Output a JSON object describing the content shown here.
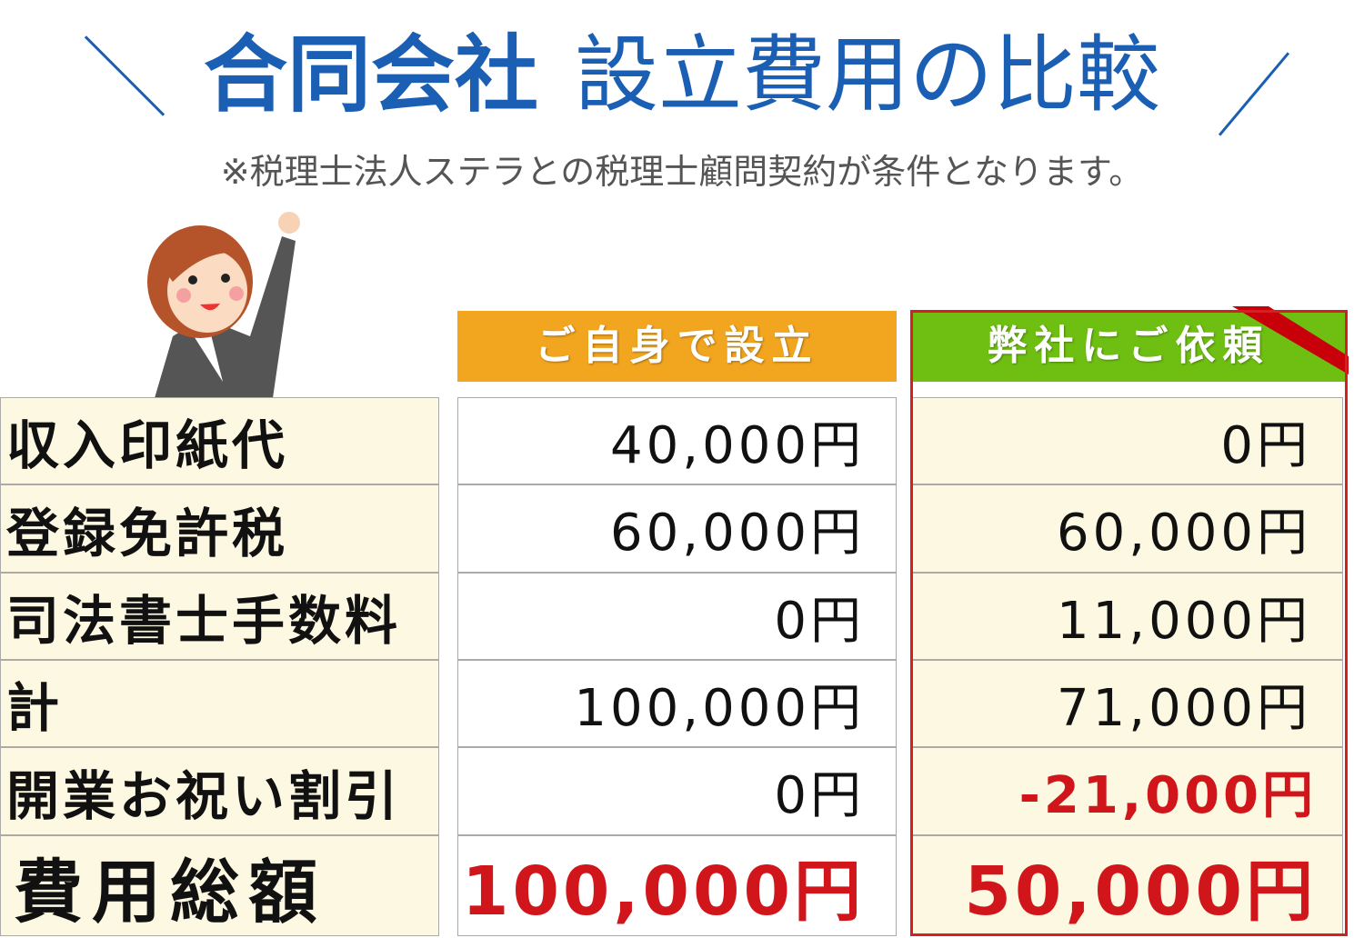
{
  "title": {
    "bold": "合同会社",
    "normal": "設立費用の比較"
  },
  "note": "※税理士法人ステラとの税理士顧問契約が条件となります。",
  "columns": [
    {
      "label": "ご自身で設立",
      "color": "#f2a51e"
    },
    {
      "label": "弊社にご依頼",
      "color": "#6fbf12"
    }
  ],
  "accent_color": "#d32020",
  "rows": [
    {
      "label": "収入印紙代",
      "self": "40,000円",
      "ours": "0円"
    },
    {
      "label": "登録免許税",
      "self": "60,000円",
      "ours": "60,000円"
    },
    {
      "label": "司法書士手数料",
      "self": "0円",
      "ours": "11,000円"
    },
    {
      "label": "計",
      "self": "100,000円",
      "ours": "71,000円"
    },
    {
      "label": "開業お祝い割引",
      "self": "0円",
      "ours": "-21,000円"
    },
    {
      "label": "費用総額",
      "self": "100,000円",
      "ours": "50,000円"
    }
  ],
  "illustration": "businesswoman-waving"
}
